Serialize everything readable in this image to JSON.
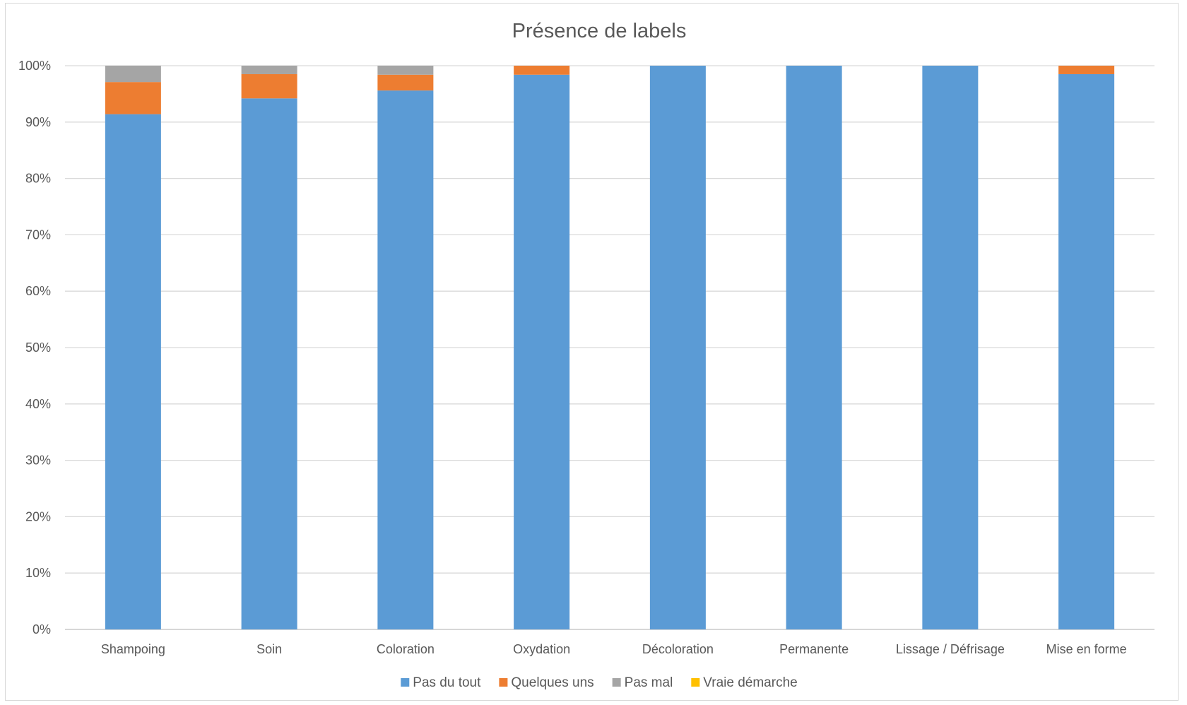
{
  "chart_data": {
    "type": "bar",
    "stacked": true,
    "percent": true,
    "title": "Présence de labels",
    "categories": [
      "Shampoing",
      "Soin",
      "Coloration",
      "Oxydation",
      "Décoloration",
      "Permanente",
      "Lissage / Défrisage",
      "Mise en forme"
    ],
    "series": [
      {
        "name": "Pas du tout",
        "color": "#5b9bd5",
        "values": [
          91.4,
          94.2,
          95.6,
          98.4,
          100,
          100,
          100,
          98.5
        ]
      },
      {
        "name": "Quelques uns",
        "color": "#ed7d31",
        "values": [
          5.7,
          4.3,
          2.8,
          1.6,
          0,
          0,
          0,
          1.5
        ]
      },
      {
        "name": "Pas mal",
        "color": "#a5a5a5",
        "values": [
          2.9,
          1.5,
          1.6,
          0,
          0,
          0,
          0,
          0
        ]
      },
      {
        "name": "Vraie démarche",
        "color": "#ffc000",
        "values": [
          0,
          0,
          0,
          0,
          0,
          0,
          0,
          0
        ]
      }
    ],
    "yticks": [
      "0%",
      "10%",
      "20%",
      "30%",
      "40%",
      "50%",
      "60%",
      "70%",
      "80%",
      "90%",
      "100%"
    ],
    "ylim": [
      0,
      100
    ],
    "grid": true,
    "legend": "bottom"
  }
}
